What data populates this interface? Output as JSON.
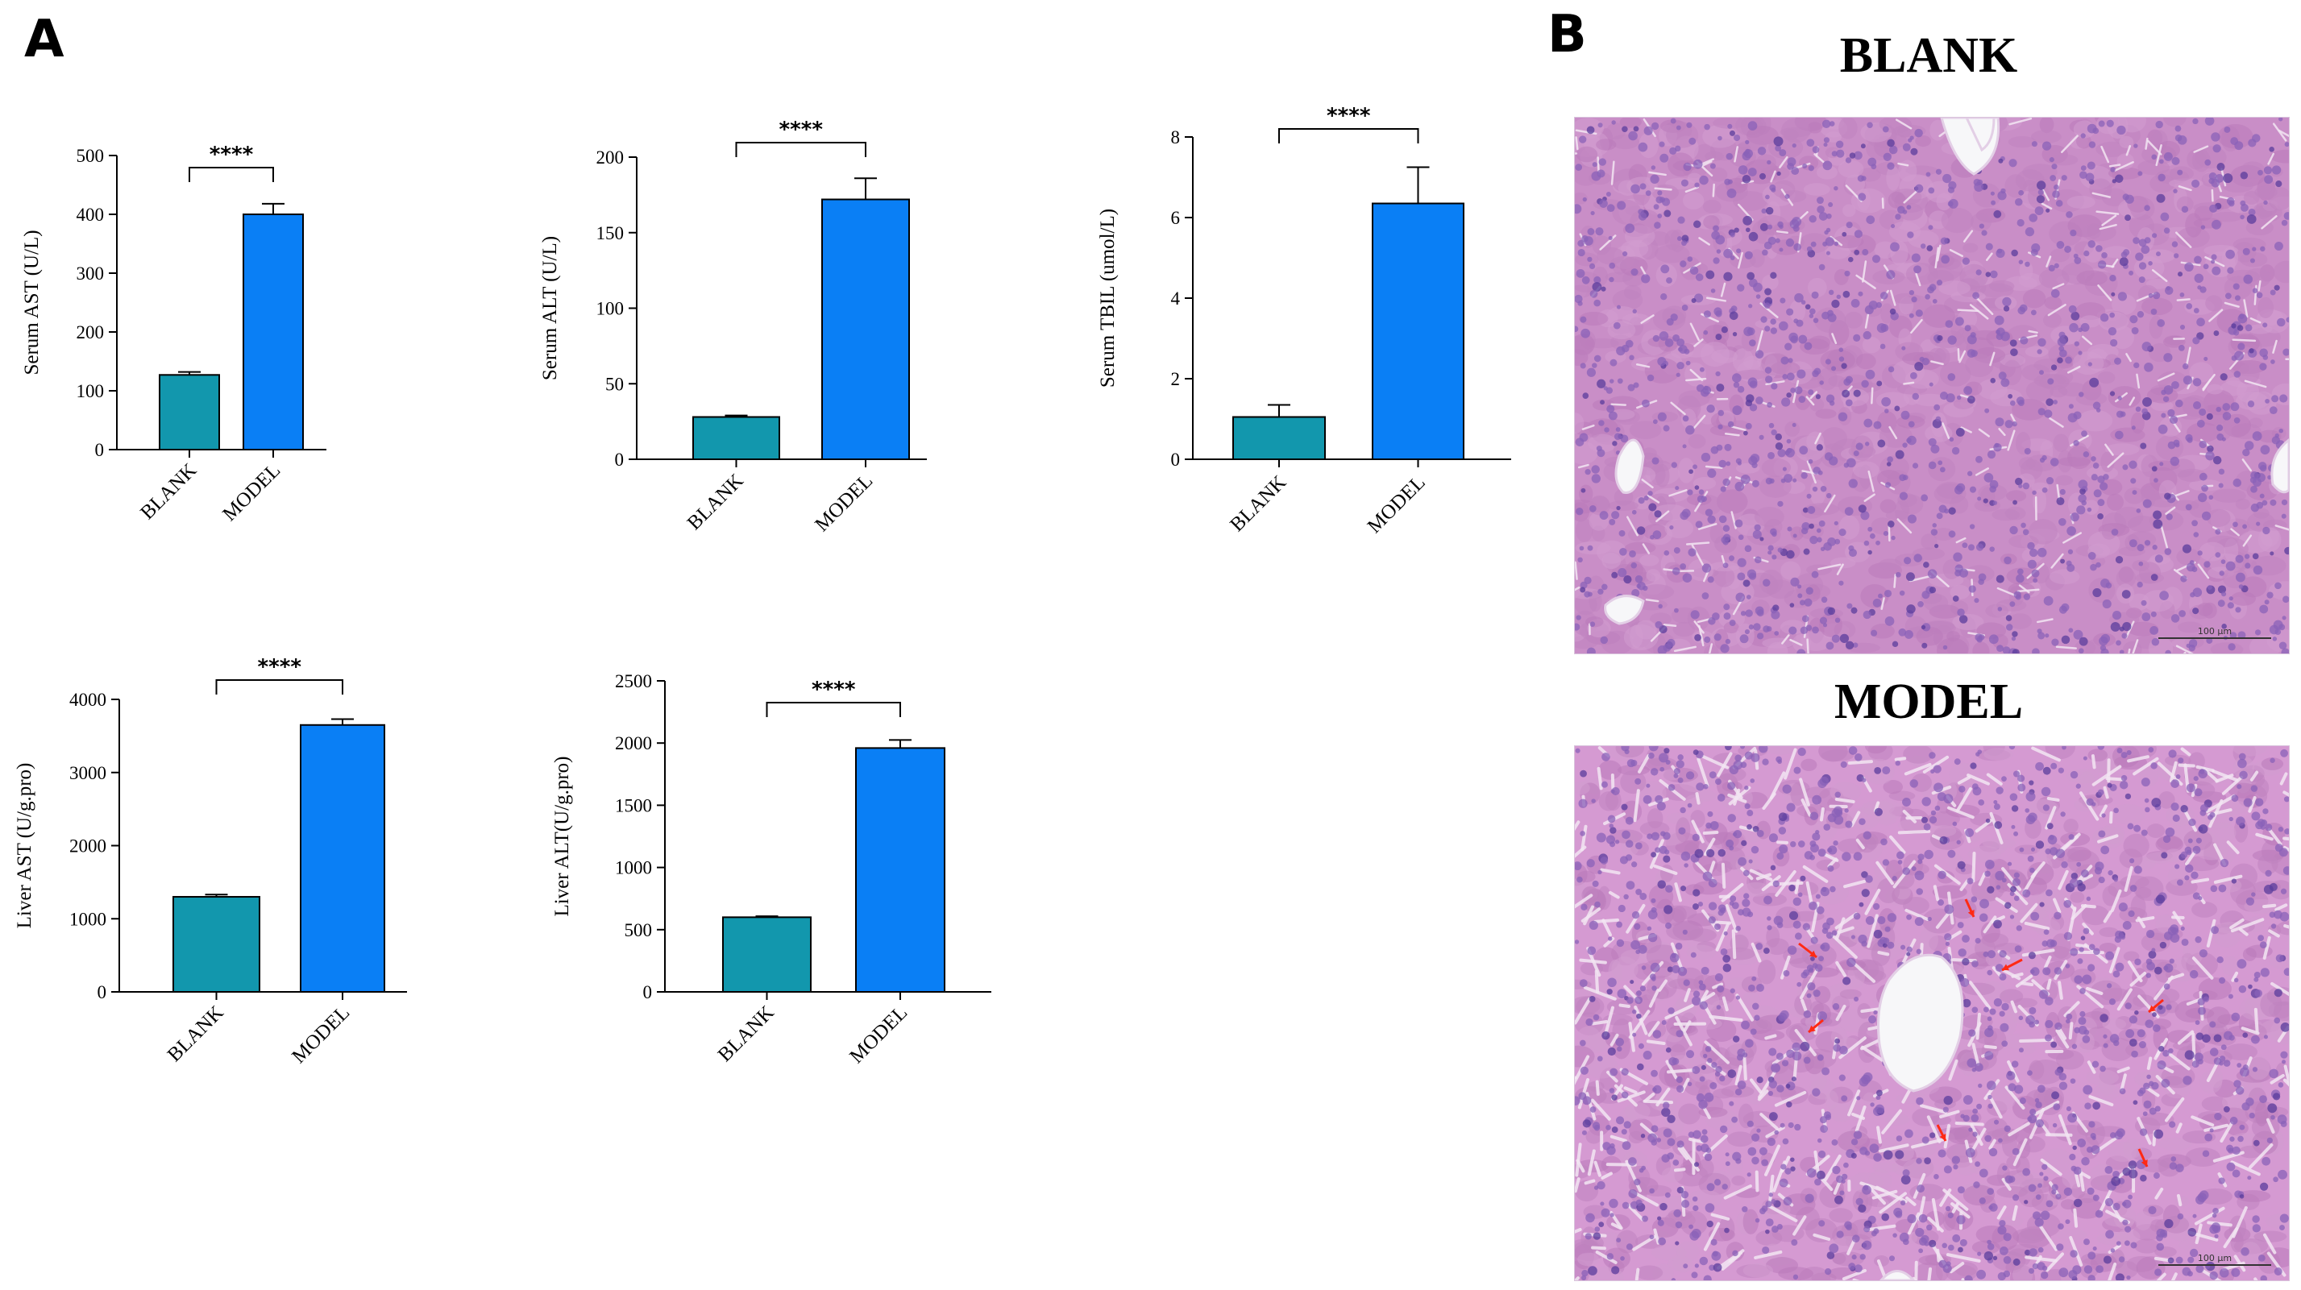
{
  "panel_a_label": "A",
  "panel_b_label": "B",
  "colors": {
    "blank": "#1297ad",
    "model": "#0a7ff5",
    "tissue": "#c98ec7",
    "arrow": "#ff2a14"
  },
  "chart_data": [
    {
      "type": "bar",
      "categories": [
        "BLANK",
        "MODEL"
      ],
      "values": [
        127,
        400
      ],
      "errors": [
        5,
        18
      ],
      "ylabel": "Serum AST (U/L)",
      "ylim": [
        0,
        500
      ],
      "yticks": [
        0,
        100,
        200,
        300,
        400,
        500
      ],
      "significance": "****"
    },
    {
      "type": "bar",
      "categories": [
        "BLANK",
        "MODEL"
      ],
      "values": [
        28,
        172
      ],
      "errors": [
        1,
        14
      ],
      "ylabel": "Serum ALT (U/L)",
      "ylim": [
        0,
        200
      ],
      "yticks": [
        0,
        50,
        100,
        150,
        200
      ],
      "significance": "****"
    },
    {
      "type": "bar",
      "categories": [
        "BLANK",
        "MODEL"
      ],
      "values": [
        1.05,
        6.35
      ],
      "errors": [
        0.3,
        0.9
      ],
      "ylabel": "Serum TBIL (umol/L)",
      "ylim": [
        0,
        8
      ],
      "yticks": [
        0,
        2,
        4,
        6,
        8
      ],
      "significance": "****"
    },
    {
      "type": "bar",
      "categories": [
        "BLANK",
        "MODEL"
      ],
      "values": [
        1300,
        3650
      ],
      "errors": [
        30,
        80
      ],
      "ylabel": "Liver AST (U/g.pro)",
      "ylim": [
        0,
        4000
      ],
      "yticks": [
        0,
        1000,
        2000,
        3000,
        4000
      ],
      "significance": "****"
    },
    {
      "type": "bar",
      "categories": [
        "BLANK",
        "MODEL"
      ],
      "values": [
        600,
        1960
      ],
      "errors": [
        8,
        65
      ],
      "ylabel": "Liver ALT(U/g.pro)",
      "ylim": [
        0,
        2500
      ],
      "yticks": [
        0,
        500,
        1000,
        1500,
        2000,
        2500
      ],
      "significance": "****"
    }
  ],
  "histology": {
    "blank_title": "BLANK",
    "model_title": "MODEL",
    "scale_label": "100 μm"
  }
}
